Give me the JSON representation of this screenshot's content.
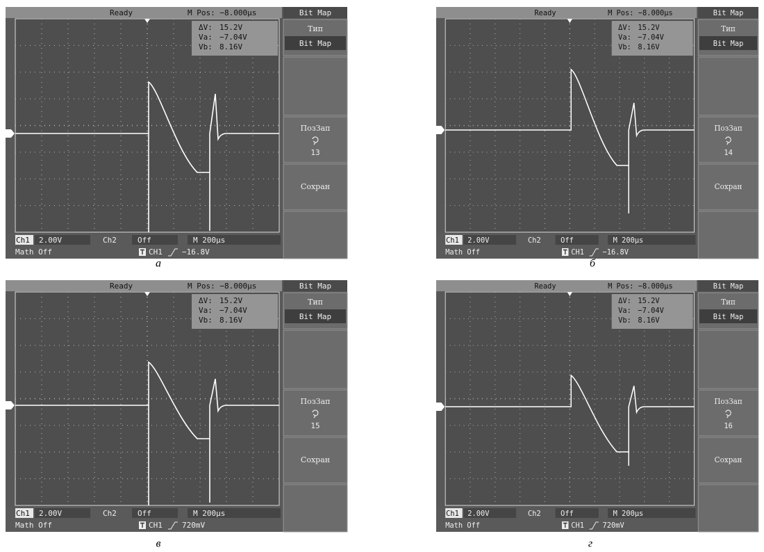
{
  "screens": [
    {
      "status": "Ready",
      "mpos": "M Pos: −8.000μs",
      "mode": "Bit Map",
      "cursors": [
        [
          "ΔV:",
          "15.2V"
        ],
        [
          "Va:",
          "−7.04V"
        ],
        [
          "Vb:",
          "8.16V"
        ]
      ],
      "menu": {
        "type_title": "Тип",
        "type_value": "Bit Map",
        "pos_title": "ПозЗап",
        "pos_value": "13",
        "save": "Сохран"
      },
      "bottom": {
        "ch1": "Ch1",
        "ch1_scale": "2.00V",
        "ch2": "Ch2",
        "ch2_state": "Off",
        "timebase": "M 200μs",
        "math": "Math Off",
        "trig_source": "CH1",
        "trig_level": "−16.8V"
      },
      "caption": "а"
    },
    {
      "status": "Ready",
      "mpos": "M Pos: −8.000μs",
      "mode": "Bit Map",
      "cursors": [
        [
          "ΔV:",
          "15.2V"
        ],
        [
          "Va:",
          "−7.04V"
        ],
        [
          "Vb:",
          "8.16V"
        ]
      ],
      "menu": {
        "type_title": "Тип",
        "type_value": "Bit Map",
        "pos_title": "ПозЗап",
        "pos_value": "14",
        "save": "Сохран"
      },
      "bottom": {
        "ch1": "Ch1",
        "ch1_scale": "2.00V",
        "ch2": "Ch2",
        "ch2_state": "Off",
        "timebase": "M 200μs",
        "math": "Math Off",
        "trig_source": "CH1",
        "trig_level": "−16.8V"
      },
      "caption": "б"
    },
    {
      "status": "Ready",
      "mpos": "M Pos: −8.000μs",
      "mode": "Bit Map",
      "cursors": [
        [
          "ΔV:",
          "15.2V"
        ],
        [
          "Va:",
          "−7.04V"
        ],
        [
          "Vb:",
          "8.16V"
        ]
      ],
      "menu": {
        "type_title": "Тип",
        "type_value": "Bit Map",
        "pos_title": "ПозЗап",
        "pos_value": "15",
        "save": "Сохран"
      },
      "bottom": {
        "ch1": "Ch1",
        "ch1_scale": "2.00V",
        "ch2": "Ch2",
        "ch2_state": "Off",
        "timebase": "M 200μs",
        "math": "Math Off",
        "trig_source": "CH1",
        "trig_level": "720mV"
      },
      "caption": "в"
    },
    {
      "status": "Ready",
      "mpos": "M Pos: −8.000μs",
      "mode": "Bit Map",
      "cursors": [
        [
          "ΔV:",
          "15.2V"
        ],
        [
          "Va:",
          "−7.04V"
        ],
        [
          "Vb:",
          "8.16V"
        ]
      ],
      "menu": {
        "type_title": "Тип",
        "type_value": "Bit Map",
        "pos_title": "ПозЗап",
        "pos_value": "16",
        "save": "Сохран"
      },
      "bottom": {
        "ch1": "Ch1",
        "ch1_scale": "2.00V",
        "ch2": "Ch2",
        "ch2_state": "Off",
        "timebase": "M 200μs",
        "math": "Math Off",
        "trig_source": "CH1",
        "trig_level": "720mV"
      },
      "caption": "г"
    }
  ]
}
